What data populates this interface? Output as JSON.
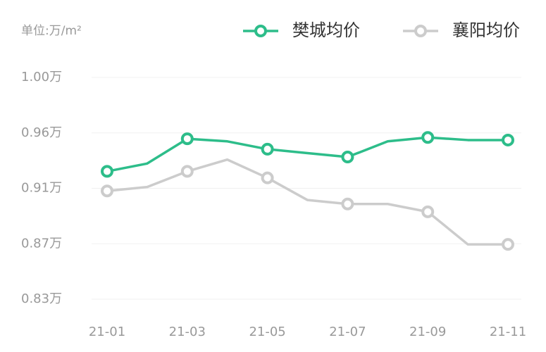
{
  "chart_data": {
    "type": "line",
    "unit": "单位:万/m²",
    "categories": [
      "21-01",
      null,
      "21-03",
      null,
      "21-05",
      null,
      "21-07",
      null,
      "21-09",
      null,
      "21-11"
    ],
    "series": [
      {
        "name": "樊城均价",
        "color": "#2dbd8a",
        "values": [
          0.928,
          0.934,
          0.953,
          0.951,
          0.945,
          0.942,
          0.939,
          0.951,
          0.954,
          0.952,
          0.952
        ]
      },
      {
        "name": "襄阳均价",
        "color": "#cccccc",
        "values": [
          0.913,
          0.916,
          0.928,
          0.937,
          0.923,
          0.906,
          0.903,
          0.903,
          0.897,
          0.872,
          0.872
        ]
      }
    ],
    "ylim": [
      0.83,
      1.0
    ],
    "yticks": [
      {
        "value": 0.83,
        "label": "0.83万"
      },
      {
        "value": 0.8725,
        "label": "0.87万"
      },
      {
        "value": 0.915,
        "label": "0.91万"
      },
      {
        "value": 0.9575,
        "label": "0.96万"
      },
      {
        "value": 1.0,
        "label": "1.00万"
      }
    ],
    "grid": true,
    "legend": "top-right"
  }
}
